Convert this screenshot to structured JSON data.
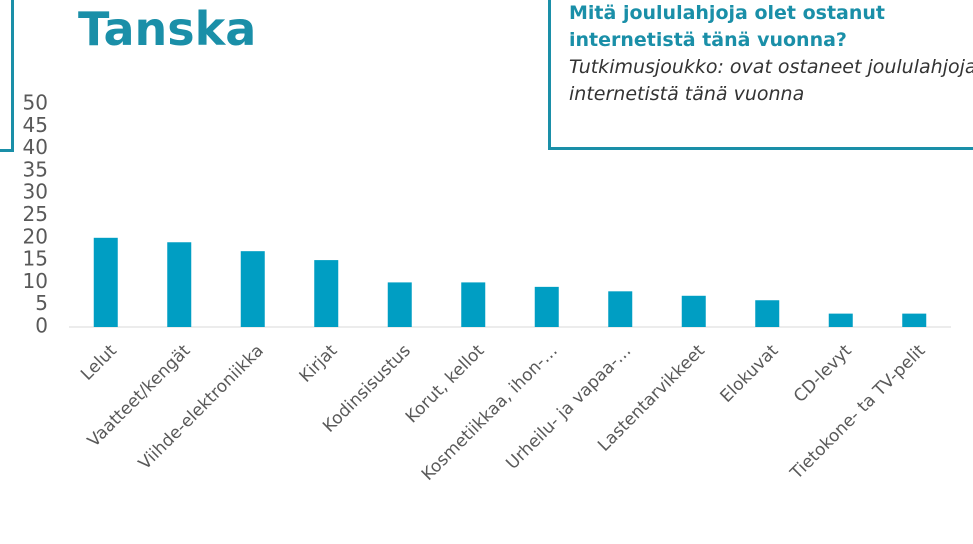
{
  "chart_data": {
    "type": "bar",
    "title": "Tanska",
    "question": "Mitä joululahjoja olet ostanut internetistä tänä vuonna?",
    "subtitle": "Tutkimusjoukko: ovat ostaneet joululahjoja internetistä tänä vuonna",
    "categories": [
      "Lelut",
      "Vaatteet/kengät",
      "Viihde-elektroniikka",
      "Kirjat",
      "Kodinsisustus",
      "Korut, kellot",
      "Kosmetiikkaa, ihon-…",
      "Urheilu- ja vapaa-…",
      "Lastentarvikkeet",
      "Elokuvat",
      "CD-levyt",
      "Tietokone- ta TV-pelit"
    ],
    "values": [
      20,
      19,
      17,
      15,
      10,
      10,
      9,
      8,
      7,
      6,
      3,
      3
    ],
    "color": "#009ec3",
    "ylim": [
      0,
      50
    ],
    "yticks": [
      0,
      5,
      10,
      15,
      20,
      25,
      30,
      35,
      40,
      45,
      50
    ],
    "grid": false
  }
}
